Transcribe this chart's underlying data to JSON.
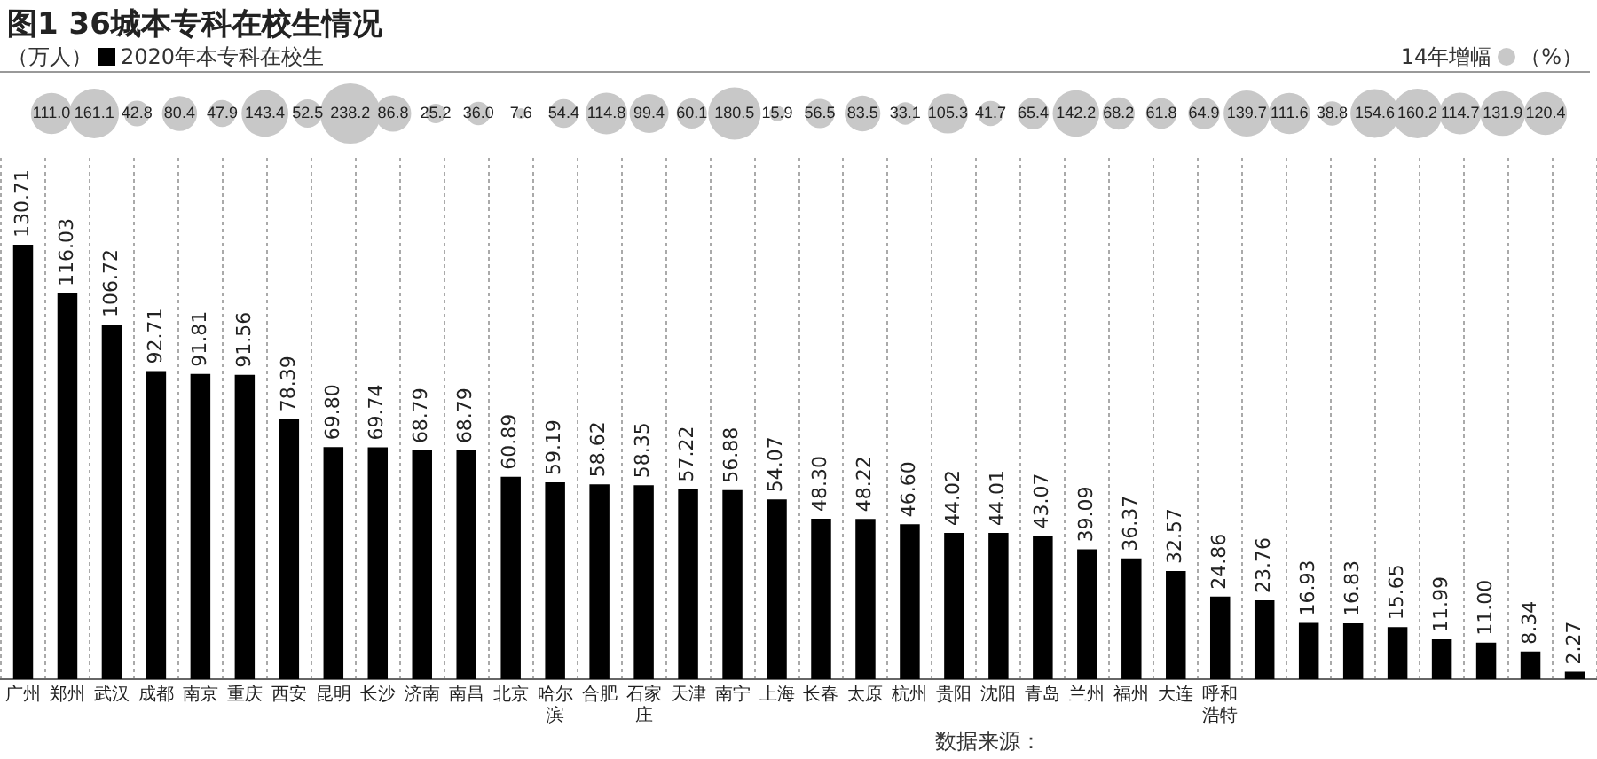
{
  "chart_data": [
    {
      "type": "bar",
      "title": "图1 36城本专科在校生情况",
      "categories": [
        "广州",
        "郑州",
        "武汉",
        "成都",
        "南京",
        "重庆",
        "西安",
        "昆明",
        "长沙",
        "济南",
        "南昌",
        "北京",
        "哈尔滨",
        "合肥",
        "石家庄",
        "天津",
        "南宁",
        "上海",
        "长春",
        "太原",
        "杭州",
        "贵阳",
        "沈阳",
        "青岛",
        "兰州",
        "福州",
        "大连",
        "呼和浩特",
        null,
        null,
        null,
        null,
        null,
        null,
        null,
        null
      ],
      "series": [
        {
          "name": "2020年本专科在校生",
          "color": "#000000",
          "values": [
            130.71,
            116.03,
            106.72,
            92.71,
            91.81,
            91.56,
            78.39,
            69.8,
            69.74,
            68.79,
            68.79,
            60.89,
            59.19,
            58.62,
            58.35,
            57.22,
            56.88,
            54.07,
            48.3,
            48.22,
            46.6,
            44.02,
            44.01,
            43.07,
            39.09,
            36.37,
            32.57,
            24.86,
            23.76,
            16.93,
            16.83,
            15.65,
            11.99,
            11.0,
            8.34,
            2.27
          ],
          "value_labels": [
            "130.71",
            "116.03",
            "106.72",
            "92.71",
            "91.81",
            "91.56",
            "78.39",
            "69.80",
            "69.74",
            "68.79",
            "68.79",
            "60.89",
            "59.19",
            "58.62",
            "58.35",
            "57.22",
            "56.88",
            "54.07",
            "48.30",
            "48.22",
            "46.60",
            "44.02",
            "44.01",
            "43.07",
            "39.09",
            "36.37",
            "32.57",
            "24.86",
            "23.76",
            "16.93",
            "16.83",
            "15.65",
            "11.99",
            "11.00",
            "8.34",
            "2.27"
          ]
        }
      ],
      "grid": "x",
      "legend": "top left",
      "annotations": [
        "（万人）",
        "数据来源："
      ]
    },
    {
      "type": "other",
      "series": [
        {
          "name": "14年增幅",
          "color": "#c8c8c8",
          "values": [
            111.0,
            161.1,
            42.8,
            80.4,
            47.9,
            143.4,
            52.5,
            238.2,
            86.8,
            25.2,
            36.0,
            7.6,
            54.4,
            114.8,
            99.4,
            60.1,
            180.5,
            15.9,
            56.5,
            83.5,
            33.1,
            105.3,
            41.7,
            65.4,
            142.2,
            68.2,
            61.8,
            64.9,
            139.7,
            111.6,
            38.8,
            154.6,
            160.2,
            114.7,
            131.9,
            120.4
          ],
          "value_labels": [
            "111.0",
            "161.1",
            "42.8",
            "80.4",
            "47.9",
            "143.4",
            "52.5",
            "238.2",
            "86.8",
            "25.2",
            "36.0",
            "7.6",
            "54.4",
            "114.8",
            "99.4",
            "60.1",
            "180.5",
            "15.9",
            "56.5",
            "83.5",
            "33.1",
            "105.3",
            "41.7",
            "65.4",
            "142.2",
            "68.2",
            "61.8",
            "64.9",
            "139.7",
            "111.6",
            "38.8",
            "154.6",
            "160.2",
            "114.7",
            "131.9",
            "120.4"
          ]
        }
      ],
      "legend": "top right",
      "annotations": [
        "（%）"
      ]
    }
  ]
}
